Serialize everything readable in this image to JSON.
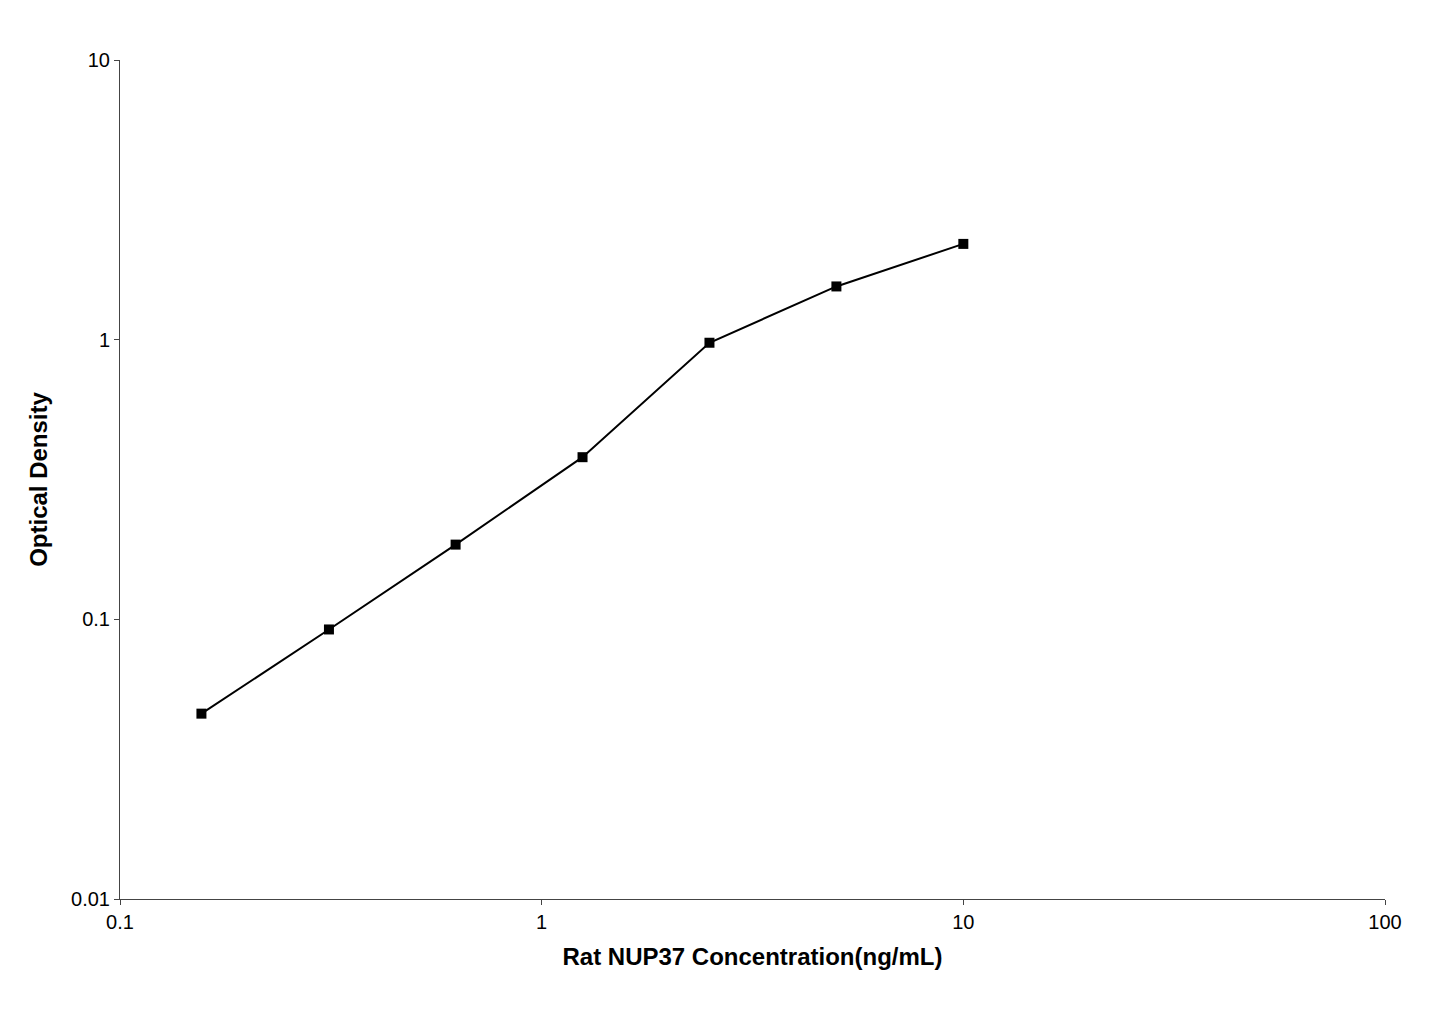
{
  "chart_data": {
    "type": "line",
    "x": [
      0.156,
      0.313,
      0.625,
      1.25,
      2.5,
      5.0,
      10.0
    ],
    "values": [
      0.046,
      0.092,
      0.185,
      0.38,
      0.975,
      1.55,
      2.2
    ],
    "xlabel": "Rat NUP37 Concentration(ng/mL)",
    "ylabel": "Optical Density",
    "xlim": [
      0.1,
      100
    ],
    "ylim": [
      0.01,
      10
    ],
    "xticks": [
      0.1,
      1,
      10,
      100
    ],
    "yticks": [
      0.01,
      0.1,
      1,
      10
    ],
    "log": true,
    "grid": false,
    "color": "#000000",
    "marker": "square"
  }
}
